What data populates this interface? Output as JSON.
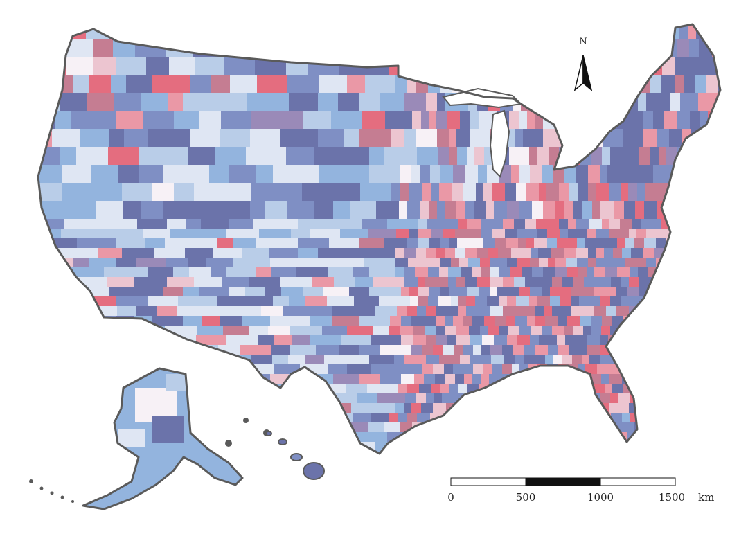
{
  "map": {
    "palette": [
      "#6b73aa",
      "#7f8fc4",
      "#93b4de",
      "#b9cde8",
      "#dfe6f3",
      "#f7f1f6",
      "#ecc5d0",
      "#ea98a6",
      "#e46d7f",
      "#c57d92",
      "#9a8ab8"
    ],
    "outline_color": "#5a5a5a",
    "regions": [
      "contiguous-us",
      "alaska",
      "hawaii"
    ]
  },
  "north_arrow": {
    "label": "N"
  },
  "scale_bar": {
    "labels": [
      "0",
      "500",
      "1000",
      "1500"
    ],
    "unit": "km"
  }
}
